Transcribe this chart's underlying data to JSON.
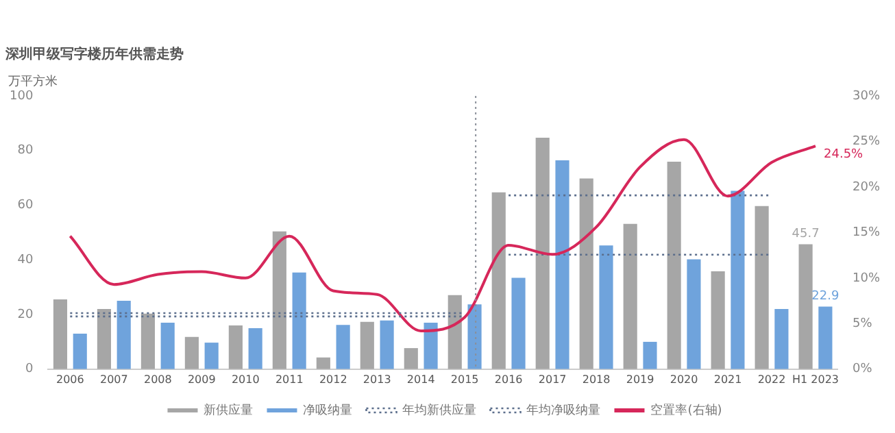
{
  "chart_data": {
    "type": "bar",
    "title": "深圳甲级写字楼历年供需走势",
    "ylabel": "万平方米",
    "categories": [
      "2006",
      "2007",
      "2008",
      "2009",
      "2010",
      "2011",
      "2012",
      "2013",
      "2014",
      "2015",
      "2016",
      "2017",
      "2018",
      "2019",
      "2020",
      "2021",
      "2022",
      "H1 2023"
    ],
    "series": [
      {
        "name": "新供应量",
        "color": "#a6a6a6",
        "values": [
          25.5,
          22,
          20.3,
          11.8,
          16,
          50.4,
          4.3,
          17.3,
          7.7,
          27.1,
          64.7,
          84.7,
          69.8,
          53.2,
          75.9,
          35.8,
          59.7,
          45.7
        ],
        "value_labels": [
          null,
          null,
          null,
          null,
          null,
          null,
          null,
          null,
          null,
          null,
          null,
          null,
          null,
          null,
          null,
          null,
          null,
          "45.7"
        ]
      },
      {
        "name": "净吸纳量",
        "color": "#6fa3dc",
        "values": [
          13,
          25,
          17,
          9.7,
          15,
          35.4,
          16.2,
          17.8,
          17,
          23.7,
          33.4,
          76.4,
          45.3,
          10,
          40.2,
          65.3,
          22,
          22.9
        ],
        "value_labels": [
          null,
          null,
          null,
          null,
          null,
          null,
          null,
          null,
          null,
          null,
          null,
          null,
          null,
          null,
          null,
          null,
          null,
          "22.9"
        ]
      },
      {
        "name": "年均新供应量",
        "type": "line",
        "line_style": "dotted",
        "color": "#5b6e8c",
        "values": [
          20.5,
          20.5,
          20.5,
          20.5,
          20.5,
          20.5,
          20.5,
          20.5,
          20.5,
          20.5,
          null,
          null,
          null,
          null,
          null,
          null,
          null,
          null
        ]
      },
      {
        "name": "年均净吸纳量",
        "type": "line",
        "line_style": "dotted",
        "color": "#5b6e8c",
        "values": [
          19.3,
          19.3,
          19.3,
          19.3,
          19.3,
          19.3,
          19.3,
          19.3,
          19.3,
          19.3,
          null,
          null,
          null,
          null,
          null,
          null,
          null,
          null
        ]
      },
      {
        "name": "空置率(右轴)",
        "type": "line",
        "axis": "y2",
        "color": "#d6275a",
        "values": [
          14.6,
          9.3,
          10.4,
          10.7,
          10,
          14.6,
          8.6,
          8.2,
          4.2,
          5.7,
          13.6,
          12.6,
          15.6,
          22.2,
          25.2,
          19,
          22.7,
          24.5
        ],
        "value_labels": [
          null,
          null,
          null,
          null,
          null,
          null,
          null,
          null,
          null,
          null,
          null,
          null,
          null,
          null,
          null,
          null,
          null,
          "24.5%"
        ]
      },
      {
        "type": "line",
        "line_style": "dotted",
        "color": "#5b6e8c",
        "values": [
          null,
          null,
          null,
          null,
          null,
          null,
          null,
          null,
          null,
          null,
          63.6,
          63.6,
          63.6,
          63.6,
          63.6,
          63.6,
          63.6,
          null
        ]
      },
      {
        "type": "line",
        "line_style": "dotted",
        "color": "#5b6e8c",
        "values": [
          null,
          null,
          null,
          null,
          null,
          null,
          null,
          null,
          null,
          null,
          41.9,
          41.9,
          41.9,
          41.9,
          41.9,
          41.9,
          41.9,
          null
        ]
      }
    ],
    "ylim": [
      0,
      100
    ],
    "yticks": [
      0,
      20,
      40,
      60,
      80,
      100
    ],
    "y2lim": [
      0,
      30
    ],
    "y2ticks": [
      {
        "value": 0,
        "label": "0%"
      },
      {
        "value": 5,
        "label": "5%"
      },
      {
        "value": 10,
        "label": "10%"
      },
      {
        "value": 15,
        "label": "15%"
      },
      {
        "value": 20,
        "label": "20%"
      },
      {
        "value": 25,
        "label": "25%"
      },
      {
        "value": 30,
        "label": "30%"
      }
    ],
    "ref_lines": [
      {
        "axis": "x",
        "value": "2015",
        "color": "#8a8f99",
        "line_style": "dotted"
      }
    ],
    "marker": "none",
    "grid": false,
    "legend": "bottom"
  }
}
